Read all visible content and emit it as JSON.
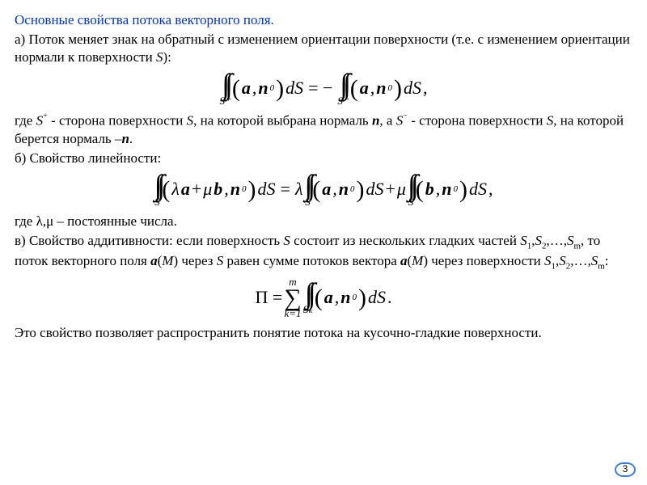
{
  "title": "Основные свойства потока векторного поля.",
  "para_a_1": "а) Поток меняет знак на обратный с изменением ориентации поверхности (т.е. с изменением ориентации нормали к поверхности ",
  "para_a_S": "S",
  "para_a_end": "):",
  "formula_a": {
    "lhs_sub": "S⁺",
    "rhs_sub": "S⁻"
  },
  "para_a2_1": "где ",
  "para_a2_2": "S",
  "para_a2_3": "⁺",
  "para_a2_4": " - сторона поверхности ",
  "para_a2_5": "S",
  "para_a2_6": ", на которой выбрана нормаль ",
  "para_a2_7": "n",
  "para_a2_8": ", а ",
  "para_a2_9": "S",
  "para_a2_10": "⁻",
  "para_a2_11": " - сторона поверхности ",
  "para_a2_12": "S",
  "para_a2_13": ", на которой берется нормаль –",
  "para_a2_14": "n",
  "para_a2_15": ".",
  "para_b": "б) Свойство линейности:",
  "formula_b_sub": "S",
  "para_b2_1": "где λ,μ – постоянные числа.",
  "para_c_1": "в) Свойство аддитивности: если поверхность ",
  "para_c_2": "S",
  "para_c_3": " состоит из нескольких гладких частей ",
  "para_c_4": "S",
  "para_c_5": "1",
  "para_c_6": ",",
  "para_c_7": "S",
  "para_c_8": "2",
  "para_c_9": ",…,",
  "para_c_10": "S",
  "para_c_11": "m",
  "para_c_12": ", то поток векторного поля ",
  "para_c_13": "a",
  "para_c_14": "(",
  "para_c_15": "M",
  "para_c_16": ") через ",
  "para_c_17": "S",
  "para_c_18": " равен сумме потоков вектора  ",
  "para_c_19": "a",
  "para_c_20": "(",
  "para_c_21": "M",
  "para_c_22": ")  через поверхности ",
  "para_c_23": "S",
  "para_c_24": "1",
  "para_c_25": ",",
  "para_c_26": "S",
  "para_c_27": "2",
  "para_c_28": ",…,",
  "para_c_29": "S",
  "para_c_30": "m",
  "para_c_31": ":",
  "formula_c": {
    "sum_top": "m",
    "sum_bot": "k=1",
    "int_sub": "Sₖ"
  },
  "para_d": "Это свойство позволяет распространить понятие потока на кусочно-гладкие поверхности.",
  "page_number": "3"
}
